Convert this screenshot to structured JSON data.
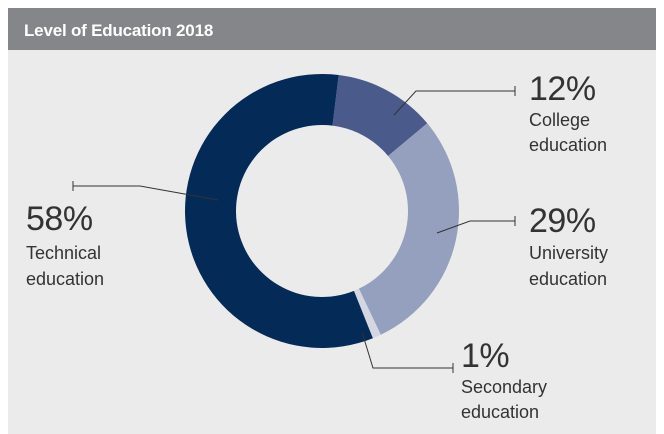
{
  "header": {
    "title": "Level of Education 2018"
  },
  "colors": {
    "header_bg": "#858689",
    "panel_bg": "#ebebeb",
    "technical": "#042a57",
    "college": "#4a5a8a",
    "university": "#94a0bd",
    "secondary": "#d4d7e2"
  },
  "chart_data": {
    "type": "pie",
    "title": "Level of Education 2018",
    "donut": true,
    "unit": "%",
    "slices": [
      {
        "value": 12,
        "pct_label": "12%",
        "label_line1": "College",
        "label_line2": "education"
      },
      {
        "value": 29,
        "pct_label": "29%",
        "label_line1": "University",
        "label_line2": "education"
      },
      {
        "value": 1,
        "pct_label": "1%",
        "label_line1": "Secondary",
        "label_line2": "education"
      },
      {
        "value": 58,
        "pct_label": "58%",
        "label_line1": "Technical",
        "label_line2": "education"
      }
    ]
  }
}
